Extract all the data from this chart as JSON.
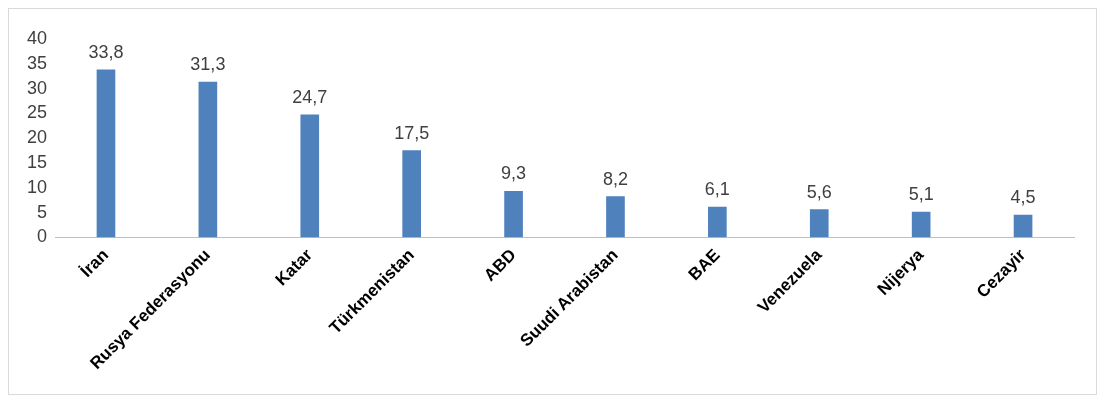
{
  "chart_data": {
    "type": "bar",
    "categories": [
      "İran",
      "Rusya Federasyonu",
      "Katar",
      "Türkmenistan",
      "ABD",
      "Suudi Arabistan",
      "BAE",
      "Venezuela",
      "Nijerya",
      "Cezayir"
    ],
    "values": [
      33.8,
      31.3,
      24.7,
      17.5,
      9.3,
      8.2,
      6.1,
      5.6,
      5.1,
      4.5
    ],
    "value_labels": [
      "33,8",
      "31,3",
      "24,7",
      "17,5",
      "9,3",
      "8,2",
      "6,1",
      "5,6",
      "5,1",
      "4,5"
    ],
    "color": "#4f81bd",
    "ylim": [
      0,
      40
    ],
    "yticks": [
      0,
      5,
      10,
      15,
      20,
      25,
      30,
      35,
      40
    ],
    "grid": false,
    "legend": false
  }
}
